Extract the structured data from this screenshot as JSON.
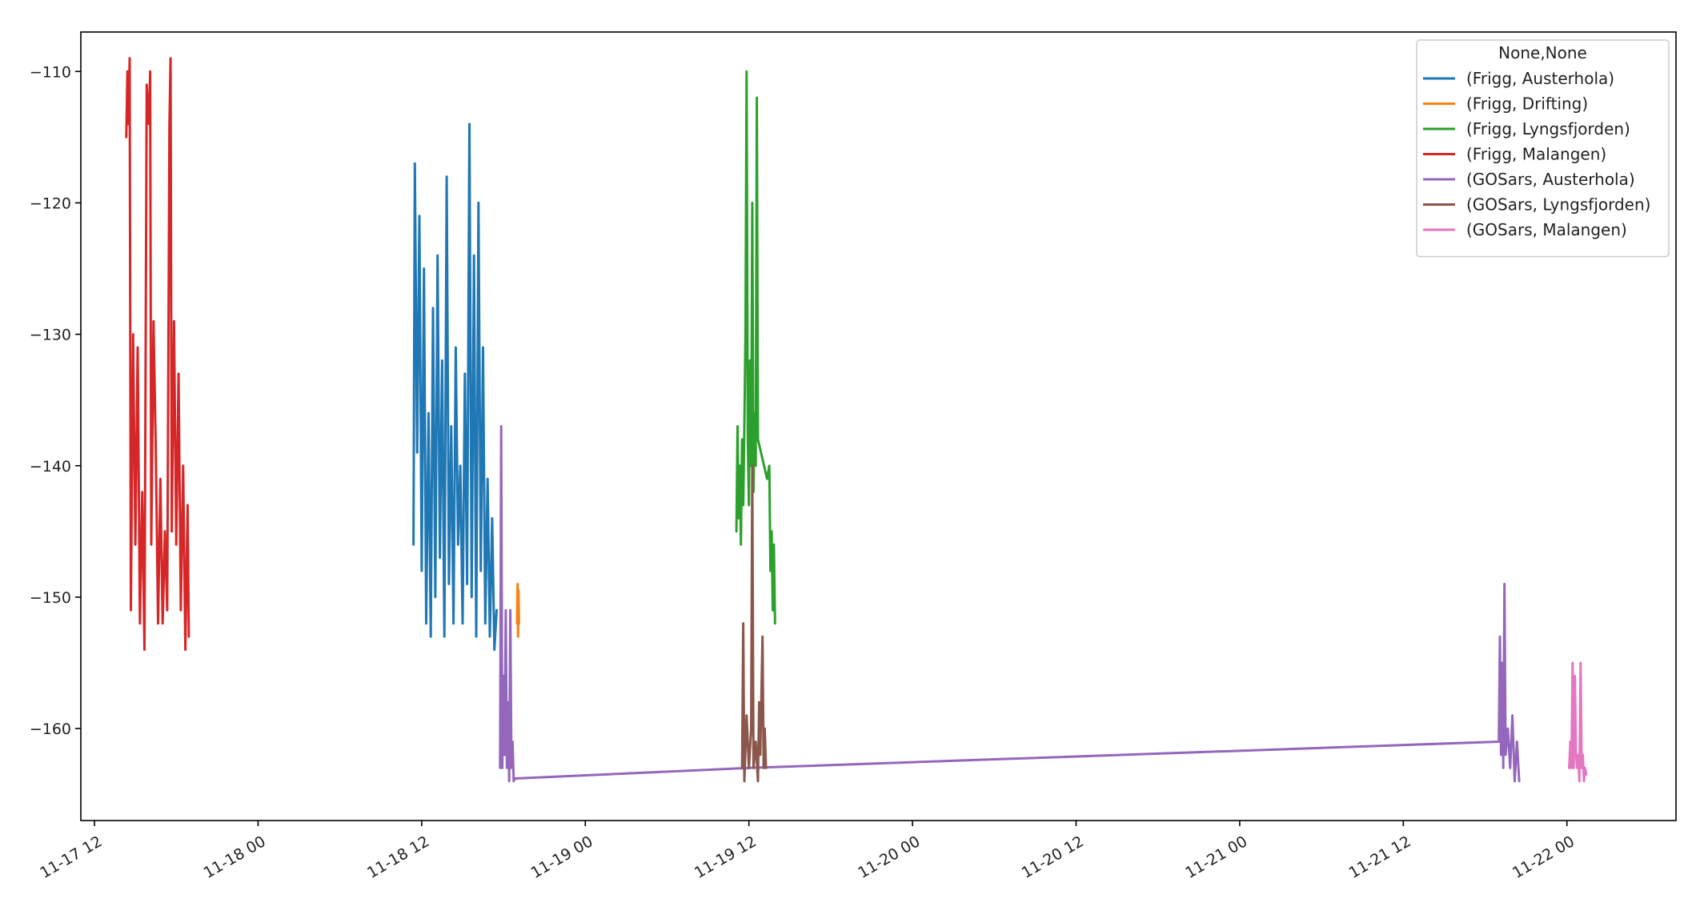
{
  "chart_data": {
    "type": "line",
    "title": "",
    "xlabel": "",
    "ylabel": "",
    "legend": {
      "title": "None,None",
      "placement": "upper-right"
    },
    "xlim": [
      "2023-11-17 11:00",
      "2023-11-22 08:00"
    ],
    "ylim": [
      -167,
      -107
    ],
    "x_ticks": [
      "2023-11-17 12:00",
      "2023-11-18 00:00",
      "2023-11-18 12:00",
      "2023-11-19 00:00",
      "2023-11-19 12:00",
      "2023-11-20 00:00",
      "2023-11-20 12:00",
      "2023-11-21 00:00",
      "2023-11-21 12:00",
      "2023-11-22 00:00"
    ],
    "x_tick_labels": [
      "11-17 12",
      "11-18 00",
      "11-18 12",
      "11-19 00",
      "11-19 12",
      "11-20 00",
      "11-20 12",
      "11-21 00",
      "11-21 12",
      "11-22 00"
    ],
    "y_ticks": [
      -110,
      -120,
      -130,
      -140,
      -150,
      -160
    ],
    "y_tick_labels": [
      "−110",
      "−120",
      "−130",
      "−140",
      "−150",
      "−160"
    ],
    "series": [
      {
        "name": "(Frigg, Austerhola)",
        "color": "#1f77b4",
        "points": [
          [
            "2023-11-18 11:24",
            -146
          ],
          [
            "2023-11-18 11:30",
            -117
          ],
          [
            "2023-11-18 11:40",
            -139
          ],
          [
            "2023-11-18 11:50",
            -121
          ],
          [
            "2023-11-18 12:00",
            -148
          ],
          [
            "2023-11-18 12:10",
            -125
          ],
          [
            "2023-11-18 12:20",
            -152
          ],
          [
            "2023-11-18 12:30",
            -136
          ],
          [
            "2023-11-18 12:40",
            -153
          ],
          [
            "2023-11-18 12:50",
            -128
          ],
          [
            "2023-11-18 13:00",
            -150
          ],
          [
            "2023-11-18 13:10",
            -124
          ],
          [
            "2023-11-18 13:20",
            -147
          ],
          [
            "2023-11-18 13:30",
            -132
          ],
          [
            "2023-11-18 13:40",
            -153
          ],
          [
            "2023-11-18 13:50",
            -118
          ],
          [
            "2023-11-18 14:00",
            -149
          ],
          [
            "2023-11-18 14:10",
            -137
          ],
          [
            "2023-11-18 14:20",
            -152
          ],
          [
            "2023-11-18 14:30",
            -131
          ],
          [
            "2023-11-18 14:40",
            -146
          ],
          [
            "2023-11-18 14:50",
            -140
          ],
          [
            "2023-11-18 15:00",
            -152
          ],
          [
            "2023-11-18 15:10",
            -133
          ],
          [
            "2023-11-18 15:20",
            -149
          ],
          [
            "2023-11-18 15:30",
            -114
          ],
          [
            "2023-11-18 15:40",
            -150
          ],
          [
            "2023-11-18 15:50",
            -124
          ],
          [
            "2023-11-18 16:00",
            -153
          ],
          [
            "2023-11-18 16:10",
            -120
          ],
          [
            "2023-11-18 16:20",
            -148
          ],
          [
            "2023-11-18 16:30",
            -131
          ],
          [
            "2023-11-18 16:40",
            -152
          ],
          [
            "2023-11-18 16:50",
            -141
          ],
          [
            "2023-11-18 17:00",
            -153
          ],
          [
            "2023-11-18 17:10",
            -144
          ],
          [
            "2023-11-18 17:20",
            -154
          ],
          [
            "2023-11-18 17:30",
            -151
          ]
        ]
      },
      {
        "name": "(Frigg, Drifting)",
        "color": "#ff7f0e",
        "points": [
          [
            "2023-11-18 19:00",
            -152
          ],
          [
            "2023-11-18 19:02",
            -149
          ],
          [
            "2023-11-18 19:04",
            -153
          ],
          [
            "2023-11-18 19:06",
            -149.5
          ],
          [
            "2023-11-18 19:08",
            -152
          ]
        ]
      },
      {
        "name": "(Frigg, Lyngsfjorden)",
        "color": "#2ca02c",
        "points": [
          [
            "2023-11-19 11:05",
            -145
          ],
          [
            "2023-11-19 11:10",
            -137
          ],
          [
            "2023-11-19 11:15",
            -144
          ],
          [
            "2023-11-19 11:20",
            -140
          ],
          [
            "2023-11-19 11:25",
            -146
          ],
          [
            "2023-11-19 11:30",
            -138
          ],
          [
            "2023-11-19 11:35",
            -143
          ],
          [
            "2023-11-19 11:40",
            -137
          ],
          [
            "2023-11-19 11:45",
            -130
          ],
          [
            "2023-11-19 11:50",
            -110
          ],
          [
            "2023-11-19 11:55",
            -138
          ],
          [
            "2023-11-19 12:00",
            -143
          ],
          [
            "2023-11-19 12:05",
            -132
          ],
          [
            "2023-11-19 12:10",
            -140
          ],
          [
            "2023-11-19 12:15",
            -120
          ],
          [
            "2023-11-19 12:20",
            -142
          ],
          [
            "2023-11-19 12:25",
            -136
          ],
          [
            "2023-11-19 12:30",
            -140
          ],
          [
            "2023-11-19 12:35",
            -112
          ],
          [
            "2023-11-19 12:40",
            -138
          ],
          [
            "2023-11-19 13:20",
            -141
          ],
          [
            "2023-11-19 13:30",
            -140
          ],
          [
            "2023-11-19 13:35",
            -148
          ],
          [
            "2023-11-19 13:40",
            -145
          ],
          [
            "2023-11-19 13:45",
            -151
          ],
          [
            "2023-11-19 13:50",
            -146
          ],
          [
            "2023-11-19 13:55",
            -152
          ]
        ]
      },
      {
        "name": "(Frigg, Malangen)",
        "color": "#d62728",
        "points": [
          [
            "2023-11-17 14:20",
            -115
          ],
          [
            "2023-11-17 14:25",
            -110
          ],
          [
            "2023-11-17 14:30",
            -114
          ],
          [
            "2023-11-17 14:35",
            -109
          ],
          [
            "2023-11-17 14:40",
            -151
          ],
          [
            "2023-11-17 14:50",
            -130
          ],
          [
            "2023-11-17 15:00",
            -146
          ],
          [
            "2023-11-17 15:10",
            -131
          ],
          [
            "2023-11-17 15:20",
            -152
          ],
          [
            "2023-11-17 15:30",
            -142
          ],
          [
            "2023-11-17 15:40",
            -154
          ],
          [
            "2023-11-17 15:50",
            -111
          ],
          [
            "2023-11-17 16:00",
            -114
          ],
          [
            "2023-11-17 16:05",
            -110
          ],
          [
            "2023-11-17 16:10",
            -146
          ],
          [
            "2023-11-17 16:20",
            -129
          ],
          [
            "2023-11-17 16:30",
            -139
          ],
          [
            "2023-11-17 16:40",
            -152
          ],
          [
            "2023-11-17 16:50",
            -141
          ],
          [
            "2023-11-17 17:00",
            -152
          ],
          [
            "2023-11-17 17:10",
            -145
          ],
          [
            "2023-11-17 17:20",
            -151
          ],
          [
            "2023-11-17 17:30",
            -114
          ],
          [
            "2023-11-17 17:35",
            -109
          ],
          [
            "2023-11-17 17:40",
            -145
          ],
          [
            "2023-11-17 17:50",
            -129
          ],
          [
            "2023-11-17 18:00",
            -146
          ],
          [
            "2023-11-17 18:10",
            -133
          ],
          [
            "2023-11-17 18:20",
            -151
          ],
          [
            "2023-11-17 18:30",
            -140
          ],
          [
            "2023-11-17 18:40",
            -154
          ],
          [
            "2023-11-17 18:50",
            -143
          ],
          [
            "2023-11-17 18:55",
            -153
          ]
        ]
      },
      {
        "name": "(GOSars, Austerhola)",
        "color": "#9467bd",
        "points": [
          [
            "2023-11-18 17:45",
            -163
          ],
          [
            "2023-11-18 17:50",
            -137
          ],
          [
            "2023-11-18 17:55",
            -163
          ],
          [
            "2023-11-18 18:00",
            -156
          ],
          [
            "2023-11-18 18:05",
            -162
          ],
          [
            "2023-11-18 18:10",
            -151
          ],
          [
            "2023-11-18 18:15",
            -163
          ],
          [
            "2023-11-18 18:20",
            -158
          ],
          [
            "2023-11-18 18:25",
            -164
          ],
          [
            "2023-11-18 18:30",
            -151
          ],
          [
            "2023-11-18 18:35",
            -163
          ],
          [
            "2023-11-18 18:40",
            -161
          ],
          [
            "2023-11-18 18:45",
            -164
          ],
          [
            "2023-11-18 18:50",
            -163.8
          ],
          [
            "2023-11-19 12:00",
            -163
          ],
          [
            "2023-11-21 19:00",
            -161
          ],
          [
            "2023-11-21 19:05",
            -153
          ],
          [
            "2023-11-21 19:10",
            -162
          ],
          [
            "2023-11-21 19:15",
            -155
          ],
          [
            "2023-11-21 19:20",
            -163
          ],
          [
            "2023-11-21 19:25",
            -149
          ],
          [
            "2023-11-21 19:30",
            -162
          ],
          [
            "2023-11-21 19:40",
            -160
          ],
          [
            "2023-11-21 19:50",
            -163
          ],
          [
            "2023-11-21 20:00",
            -159
          ],
          [
            "2023-11-21 20:10",
            -164
          ],
          [
            "2023-11-21 20:20",
            -161
          ],
          [
            "2023-11-21 20:30",
            -164
          ]
        ]
      },
      {
        "name": "(GOSars, Lyngsfjorden)",
        "color": "#8c564b",
        "points": [
          [
            "2023-11-19 11:30",
            -163
          ],
          [
            "2023-11-19 11:35",
            -152
          ],
          [
            "2023-11-19 11:40",
            -164
          ],
          [
            "2023-11-19 11:50",
            -159
          ],
          [
            "2023-11-19 12:00",
            -163
          ],
          [
            "2023-11-19 12:10",
            -160
          ],
          [
            "2023-11-19 12:15",
            -140
          ],
          [
            "2023-11-19 12:20",
            -163
          ],
          [
            "2023-11-19 12:30",
            -161
          ],
          [
            "2023-11-19 12:40",
            -164
          ],
          [
            "2023-11-19 12:45",
            -158
          ],
          [
            "2023-11-19 12:50",
            -162
          ],
          [
            "2023-11-19 13:00",
            -153
          ],
          [
            "2023-11-19 13:05",
            -163
          ],
          [
            "2023-11-19 13:10",
            -160
          ],
          [
            "2023-11-19 13:15",
            -163
          ]
        ]
      },
      {
        "name": "(GOSars, Malangen)",
        "color": "#e377c2",
        "points": [
          [
            "2023-11-22 00:10",
            -163
          ],
          [
            "2023-11-22 00:15",
            -161
          ],
          [
            "2023-11-22 00:20",
            -163
          ],
          [
            "2023-11-22 00:25",
            -155
          ],
          [
            "2023-11-22 00:30",
            -163
          ],
          [
            "2023-11-22 00:35",
            -156
          ],
          [
            "2023-11-22 00:40",
            -162
          ],
          [
            "2023-11-22 00:45",
            -163
          ],
          [
            "2023-11-22 00:50",
            -162
          ],
          [
            "2023-11-22 00:55",
            -164
          ],
          [
            "2023-11-22 01:00",
            -155
          ],
          [
            "2023-11-22 01:05",
            -163
          ],
          [
            "2023-11-22 01:10",
            -162
          ],
          [
            "2023-11-22 01:15",
            -164
          ],
          [
            "2023-11-22 01:20",
            -163
          ],
          [
            "2023-11-22 01:25",
            -163.5
          ]
        ]
      }
    ]
  }
}
